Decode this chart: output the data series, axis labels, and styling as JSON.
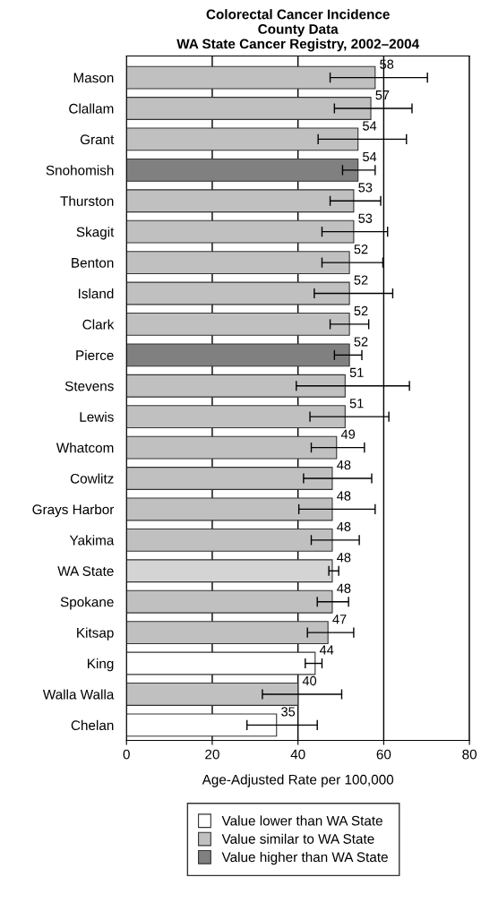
{
  "chart_data": {
    "type": "bar",
    "orientation": "horizontal",
    "title": "Colorectal Cancer Incidence\nCounty Data\nWA State Cancer Registry, 2002–2004",
    "xlabel": "Age-Adjusted Rate per 100,000",
    "categories": [
      "Mason",
      "Clallam",
      "Grant",
      "Snohomish",
      "Thurston",
      "Skagit",
      "Benton",
      "Island",
      "Clark",
      "Pierce",
      "Stevens",
      "Lewis",
      "Whatcom",
      "Cowlitz",
      "Grays Harbor",
      "Yakima",
      "WA State",
      "Spokane",
      "Kitsap",
      "King",
      "Walla Walla",
      "Chelan"
    ],
    "series": [
      {
        "name": "Value lower than WA State",
        "color": "#ffffff",
        "values": [
          null,
          null,
          null,
          null,
          null,
          null,
          null,
          null,
          null,
          null,
          null,
          null,
          null,
          null,
          null,
          null,
          null,
          null,
          null,
          44,
          null,
          35
        ],
        "errors": [
          null,
          null,
          null,
          null,
          null,
          null,
          null,
          null,
          null,
          null,
          null,
          null,
          null,
          null,
          null,
          null,
          null,
          null,
          null,
          [
            41.7,
            45.6
          ],
          null,
          [
            28.1,
            44.5
          ]
        ]
      },
      {
        "name": "Value similar to WA State",
        "color": "#c0c0c0",
        "values": [
          58,
          57,
          54,
          null,
          53,
          53,
          52,
          52,
          52,
          null,
          51,
          51,
          49,
          48,
          48,
          48,
          null,
          48,
          47,
          null,
          40,
          null
        ],
        "errors": [
          [
            47.5,
            70.2
          ],
          [
            48.5,
            66.6
          ],
          [
            44.7,
            65.3
          ],
          null,
          [
            47.5,
            59.3
          ],
          [
            45.6,
            60.9
          ],
          [
            45.6,
            59.8
          ],
          [
            43.8,
            62.1
          ],
          [
            47.5,
            56.5
          ],
          null,
          [
            39.6,
            66.0
          ],
          [
            42.8,
            61.2
          ],
          [
            43.1,
            55.5
          ],
          [
            41.3,
            57.2
          ],
          [
            40.2,
            58.0
          ],
          [
            43.1,
            54.3
          ],
          null,
          [
            44.5,
            51.8
          ],
          [
            42.2,
            53.0
          ],
          null,
          [
            31.7,
            50.2
          ],
          null
        ]
      },
      {
        "name": "Value higher than WA State",
        "color": "#808080",
        "values": [
          null,
          null,
          null,
          54,
          null,
          null,
          null,
          null,
          null,
          52,
          null,
          null,
          null,
          null,
          null,
          null,
          null,
          null,
          null,
          null,
          null,
          null
        ],
        "errors": [
          null,
          null,
          null,
          [
            50.4,
            58.0
          ],
          null,
          null,
          null,
          null,
          null,
          [
            48.5,
            54.9
          ],
          null,
          null,
          null,
          null,
          null,
          null,
          null,
          null,
          null,
          null,
          null,
          null
        ]
      },
      {
        "color": "#d4d4d4",
        "values": [
          null,
          null,
          null,
          null,
          null,
          null,
          null,
          null,
          null,
          null,
          null,
          null,
          null,
          null,
          null,
          null,
          48,
          null,
          null,
          null,
          null,
          null
        ],
        "errors": [
          null,
          null,
          null,
          null,
          null,
          null,
          null,
          null,
          null,
          null,
          null,
          null,
          null,
          null,
          null,
          null,
          [
            47.2,
            49.5
          ],
          null,
          null,
          null,
          null,
          null
        ]
      }
    ],
    "xlim": [
      0,
      80
    ],
    "xticks": [
      0,
      20,
      40,
      60,
      80
    ],
    "grid": "x",
    "data_labels": true,
    "legend": "bottom"
  }
}
